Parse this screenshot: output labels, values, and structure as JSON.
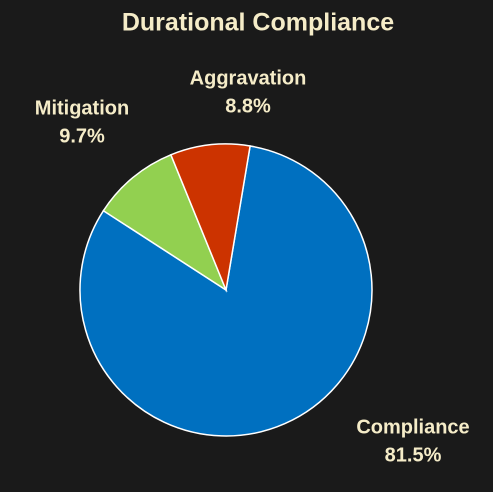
{
  "chart_data": {
    "type": "pie",
    "title": "Durational Compliance",
    "categories": [
      "Compliance",
      "Mitigation",
      "Aggravation"
    ],
    "values": [
      81.5,
      9.7,
      8.8
    ],
    "value_labels": [
      "81.5%",
      "9.7%",
      "8.8%"
    ],
    "colors": [
      "#0070c0",
      "#92d050",
      "#cc3300"
    ]
  }
}
